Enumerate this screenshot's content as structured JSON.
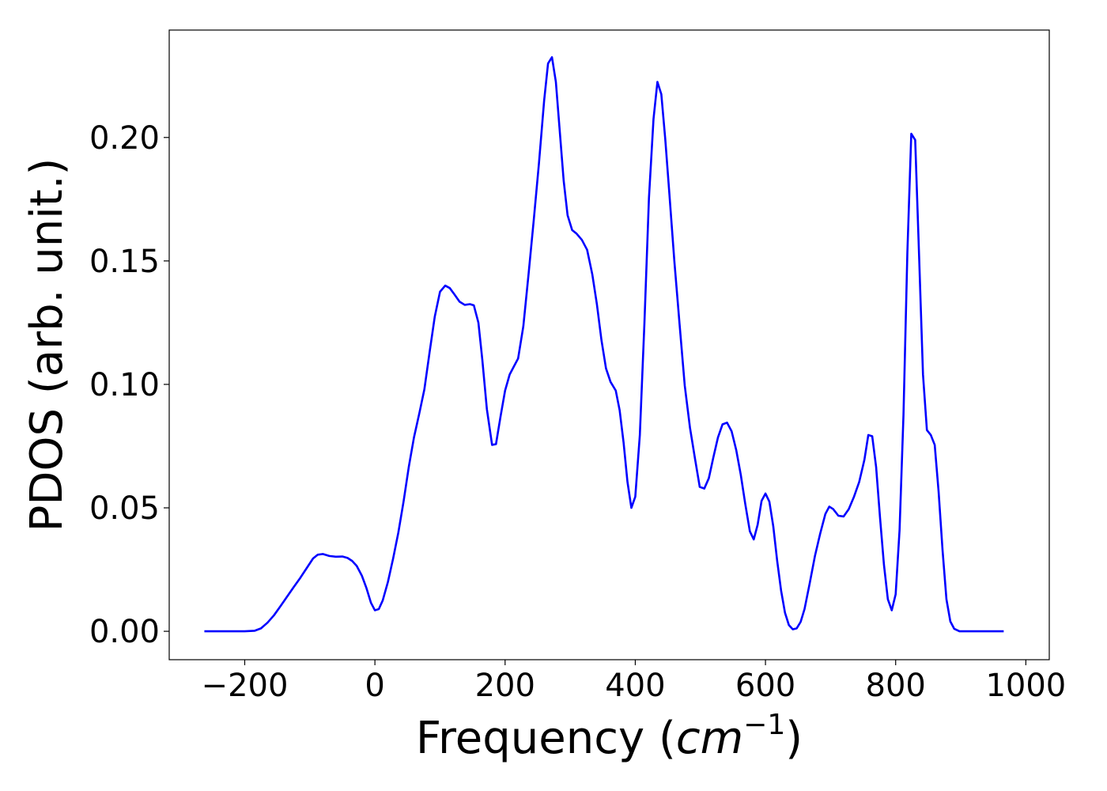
{
  "chart_data": {
    "type": "line",
    "title": "",
    "xlabel_prefix": "Frequency (",
    "xlabel_var": "cm",
    "xlabel_exp": "−1",
    "xlabel_suffix": ")",
    "ylabel": "PDOS (arb. unit.)",
    "xlim": [
      -316,
      1036
    ],
    "ylim": [
      -0.0115,
      0.2435
    ],
    "xticks": [
      -200,
      0,
      200,
      400,
      600,
      800,
      1000
    ],
    "xtick_labels": [
      "−200",
      "0",
      "200",
      "400",
      "600",
      "800",
      "1000"
    ],
    "yticks": [
      0.0,
      0.05,
      0.1,
      0.15,
      0.2
    ],
    "ytick_labels": [
      "0.00",
      "0.05",
      "0.10",
      "0.15",
      "0.20"
    ],
    "grid": false,
    "legend": "none",
    "series": [
      {
        "color": "#0000ff",
        "x": [
          -262,
          -240,
          -220,
          -200,
          -185,
          -175,
          -165,
          -155,
          -145,
          -135,
          -125,
          -115,
          -105,
          -95,
          -88,
          -80,
          -70,
          -60,
          -50,
          -42,
          -35,
          -28,
          -20,
          -13,
          -6,
          0,
          6,
          12,
          20,
          28,
          36,
          44,
          52,
          60,
          68,
          76,
          84,
          92,
          100,
          108,
          115,
          122,
          130,
          138,
          146,
          152,
          159,
          165,
          172,
          180,
          186,
          193,
          200,
          207,
          214,
          220,
          228,
          236,
          244,
          252,
          260,
          266,
          272,
          278,
          284,
          290,
          296,
          303,
          310,
          318,
          326,
          334,
          341,
          348,
          355,
          362,
          370,
          376,
          382,
          388,
          394,
          400,
          407,
          414,
          421,
          428,
          434,
          440,
          446,
          452,
          460,
          468,
          476,
          484,
          492,
          499,
          506,
          513,
          520,
          527,
          534,
          541,
          548,
          555,
          562,
          569,
          576,
          582,
          588,
          594,
          600,
          606,
          612,
          618,
          624,
          630,
          636,
          642,
          648,
          654,
          660,
          668,
          676,
          684,
          692,
          698,
          704,
          712,
          720,
          728,
          736,
          744,
          752,
          758,
          764,
          770,
          776,
          782,
          788,
          794,
          800,
          806,
          812,
          818,
          824,
          830,
          836,
          842,
          848,
          854,
          860,
          866,
          872,
          878,
          884,
          890,
          898,
          910,
          930,
          966
        ],
        "y": [
          0,
          0,
          0,
          0,
          0.0002,
          0.0012,
          0.0035,
          0.0065,
          0.0102,
          0.014,
          0.0178,
          0.0215,
          0.0255,
          0.0295,
          0.031,
          0.0313,
          0.0305,
          0.0302,
          0.0303,
          0.0297,
          0.0285,
          0.0265,
          0.0225,
          0.0175,
          0.0115,
          0.0085,
          0.009,
          0.0125,
          0.02,
          0.0295,
          0.04,
          0.0525,
          0.0665,
          0.0785,
          0.088,
          0.098,
          0.113,
          0.1275,
          0.1375,
          0.14,
          0.139,
          0.1365,
          0.1335,
          0.1322,
          0.1325,
          0.132,
          0.125,
          0.11,
          0.09,
          0.0755,
          0.0758,
          0.087,
          0.0975,
          0.104,
          0.1075,
          0.1105,
          0.1235,
          0.1445,
          0.1665,
          0.1895,
          0.215,
          0.23,
          0.2325,
          0.2225,
          0.2025,
          0.1825,
          0.1685,
          0.1625,
          0.161,
          0.1585,
          0.1545,
          0.1445,
          0.1325,
          0.118,
          0.1065,
          0.101,
          0.0975,
          0.0895,
          0.0765,
          0.0605,
          0.05,
          0.0545,
          0.0795,
          0.1245,
          0.1755,
          0.2075,
          0.2225,
          0.2175,
          0.1995,
          0.1785,
          0.15,
          0.1245,
          0.0995,
          0.0825,
          0.0695,
          0.0585,
          0.0578,
          0.062,
          0.0705,
          0.0785,
          0.0838,
          0.0845,
          0.081,
          0.0735,
          0.0635,
          0.0515,
          0.0405,
          0.0372,
          0.0432,
          0.0528,
          0.0558,
          0.0525,
          0.0425,
          0.0285,
          0.0165,
          0.0075,
          0.0025,
          0.0008,
          0.0012,
          0.0038,
          0.009,
          0.0195,
          0.0305,
          0.0395,
          0.0475,
          0.0505,
          0.0495,
          0.0468,
          0.0465,
          0.0495,
          0.0545,
          0.0605,
          0.0695,
          0.0795,
          0.079,
          0.0665,
          0.046,
          0.027,
          0.013,
          0.0085,
          0.015,
          0.041,
          0.0875,
          0.1535,
          0.2015,
          0.199,
          0.152,
          0.104,
          0.0815,
          0.0795,
          0.0755,
          0.0565,
          0.033,
          0.013,
          0.004,
          0.001,
          0,
          0,
          0,
          0
        ]
      }
    ]
  }
}
